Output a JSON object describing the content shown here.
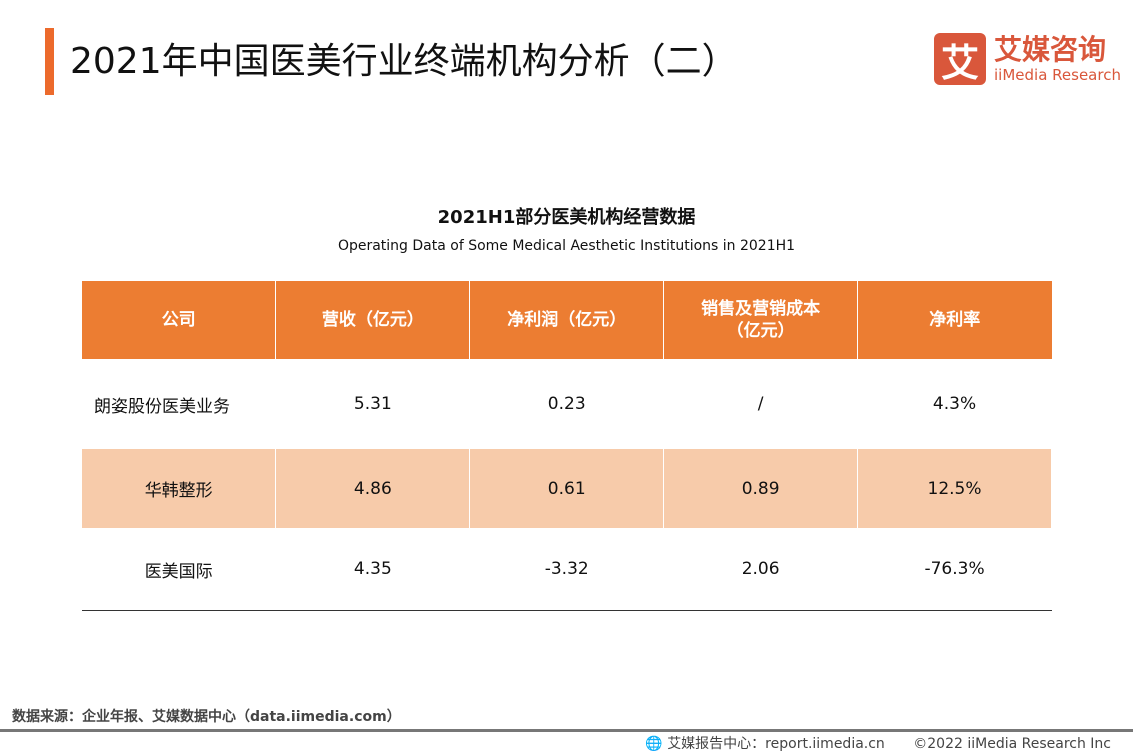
{
  "header": {
    "title": "2021年中国医美行业终端机构分析（二）",
    "logo": {
      "mark": "艾",
      "cn": "艾媒咨询",
      "en": "iiMedia Research"
    }
  },
  "table": {
    "title": "2021H1部分医美机构经营数据",
    "subtitle": "Operating Data of Some Medical Aesthetic Institutions in 2021H1",
    "columns": [
      "公司",
      "营收（亿元）",
      "净利润（亿元）",
      "销售及营销成本（亿元）",
      "净利率"
    ],
    "rows": [
      [
        "朗姿股份医美业务",
        "5.31",
        "0.23",
        "/",
        "4.3%"
      ],
      [
        "华韩整形",
        "4.86",
        "0.61",
        "0.89",
        "12.5%"
      ],
      [
        "医美国际",
        "4.35",
        "-3.32",
        "2.06",
        "-76.3%"
      ]
    ]
  },
  "footer": {
    "source": "数据来源：企业年报、艾媒数据中心（data.iimedia.com）",
    "report": "艾媒报告中心：report.iimedia.cn",
    "copyright": "©2022  iiMedia Research  Inc"
  },
  "colors": {
    "accent": "#ec7d32",
    "highlight_row": "#f7cbaa",
    "brand": "#d9573b"
  }
}
